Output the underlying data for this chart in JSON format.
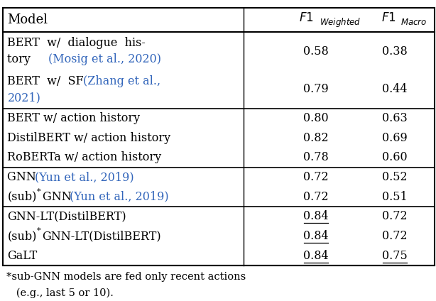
{
  "col_headers": [
    "Model",
    "F1_Weighted",
    "F1_Macro"
  ],
  "rows": [
    {
      "model_text": "BERT  w/  dialogue  his-",
      "model_text2": "tory ",
      "citation": "(Mosig et al., 2020)",
      "citation_line": 2,
      "f1w": "0.58",
      "f1m": "0.38",
      "f1w_underline": false,
      "f1m_underline": false,
      "multiline": true,
      "group": 0
    },
    {
      "model_text": "BERT  w/  SF  ",
      "model_text2": "2021)",
      "citation": "(Zhang et al.,",
      "citation_line": 1,
      "f1w": "0.79",
      "f1m": "0.44",
      "f1w_underline": false,
      "f1m_underline": false,
      "multiline": true,
      "group": 0
    },
    {
      "model_text": "BERT w/ action history",
      "f1w": "0.80",
      "f1m": "0.63",
      "f1w_underline": false,
      "f1m_underline": false,
      "multiline": false,
      "group": 1
    },
    {
      "model_text": "DistilBERT w/ action history",
      "f1w": "0.82",
      "f1m": "0.69",
      "f1w_underline": false,
      "f1m_underline": false,
      "multiline": false,
      "group": 1
    },
    {
      "model_text": "RoBERTa w/ action history",
      "f1w": "0.78",
      "f1m": "0.60",
      "f1w_underline": false,
      "f1m_underline": false,
      "multiline": false,
      "group": 1
    },
    {
      "model_text": "GNN ",
      "citation": "(Yun et al., 2019)",
      "f1w": "0.72",
      "f1m": "0.52",
      "f1w_underline": false,
      "f1m_underline": false,
      "multiline": false,
      "sub": false,
      "group": 2
    },
    {
      "model_text": "GNN ",
      "citation": "(Yun et al., 2019)",
      "f1w": "0.72",
      "f1m": "0.51",
      "f1w_underline": false,
      "f1m_underline": false,
      "multiline": false,
      "sub": true,
      "group": 2
    },
    {
      "model_text": "GNN-LT(DistilBERT)",
      "f1w": "0.84",
      "f1m": "0.72",
      "f1w_underline": true,
      "f1m_underline": false,
      "multiline": false,
      "sub": false,
      "group": 3
    },
    {
      "model_text": "GNN-LT(DistilBERT)",
      "f1w": "0.84",
      "f1m": "0.72",
      "f1w_underline": true,
      "f1m_underline": false,
      "multiline": false,
      "sub": true,
      "group": 3
    },
    {
      "model_text": "GaLT",
      "f1w": "0.84",
      "f1m": "0.75",
      "f1w_underline": true,
      "f1m_underline": true,
      "multiline": false,
      "sub": false,
      "group": 3
    }
  ],
  "footnote1": "*sub-GNN models are fed only recent actions",
  "footnote2": "   (e.g., last 5 or 10).",
  "link_color": "#3366BB",
  "text_color": "#000000",
  "bg_color": "#FFFFFF"
}
